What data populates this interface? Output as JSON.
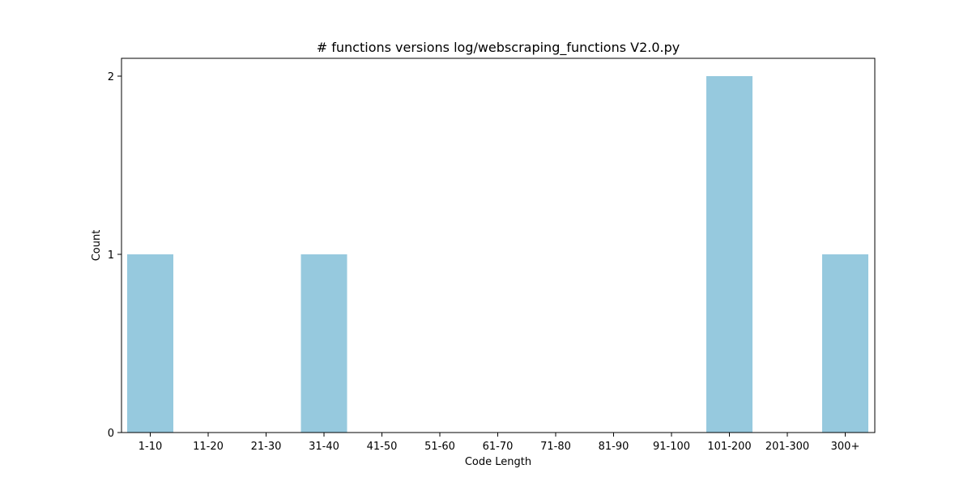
{
  "chart_data": {
    "type": "bar",
    "title": "# functions versions log/webscraping_functions V2.0.py",
    "xlabel": "Code Length",
    "ylabel": "Count",
    "categories": [
      "1-10",
      "11-20",
      "21-30",
      "31-40",
      "41-50",
      "51-60",
      "61-70",
      "71-80",
      "81-90",
      "91-100",
      "101-200",
      "201-300",
      "300+"
    ],
    "values": [
      1,
      0,
      0,
      1,
      0,
      0,
      0,
      0,
      0,
      0,
      2,
      0,
      1
    ],
    "ylim": [
      0,
      2.1
    ],
    "yticks": [
      0,
      1,
      2
    ],
    "grid": false,
    "legend": "none",
    "bar_color": "#96c9de"
  }
}
